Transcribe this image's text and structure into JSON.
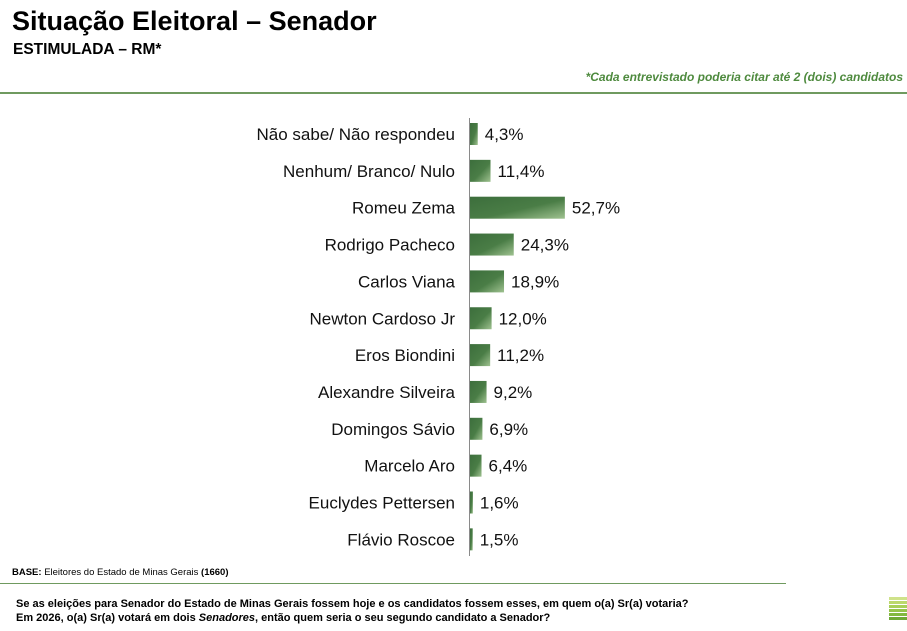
{
  "header": {
    "title": "Situação Eleitoral – Senador",
    "subtitle": "ESTIMULADA – RM*",
    "note": "*Cada entrevistado poderia citar até 2 (dois) candidatos"
  },
  "chart_data": {
    "type": "bar",
    "orientation": "horizontal",
    "categories": [
      "Não sabe/ Não respondeu",
      "Nenhum/ Branco/ Nulo",
      "Romeu Zema",
      "Rodrigo Pacheco",
      "Carlos Viana",
      "Newton Cardoso Jr",
      "Eros Biondini",
      "Alexandre Silveira",
      "Domingos Sávio",
      "Marcelo Aro",
      "Euclydes Pettersen",
      "Flávio Roscoe"
    ],
    "values": [
      4.3,
      11.4,
      52.7,
      24.3,
      18.9,
      12.0,
      11.2,
      9.2,
      6.9,
      6.4,
      1.6,
      1.5
    ],
    "data_labels": [
      "4,3%",
      "11,4%",
      "52,7%",
      "24,3%",
      "18,9%",
      "12,0%",
      "11,2%",
      "9,2%",
      "6,9%",
      "6,4%",
      "1,6%",
      "1,5%"
    ],
    "bar_color": "#3c6e3c",
    "grid": false,
    "legend": false
  },
  "footer": {
    "base_label": "BASE:",
    "base_text": "Eleitores do Estado de Minas Gerais",
    "base_n": "(1660)",
    "question_line1": "Se as eleições para Senador do Estado de Minas Gerais fossem hoje e os candidatos fossem esses, em quem o(a) Sr(a) votaria?",
    "question_line2_a": "Em 2026, o(a) Sr(a) votará em dois ",
    "question_line2_em": "Senadores",
    "question_line2_b": ", então quem seria o seu segundo candidato a Senador?"
  },
  "logo": {
    "colors": [
      "#cfe28a",
      "#bcd86c",
      "#a9cf58",
      "#96c44a",
      "#82b83f",
      "#6fa936"
    ]
  }
}
